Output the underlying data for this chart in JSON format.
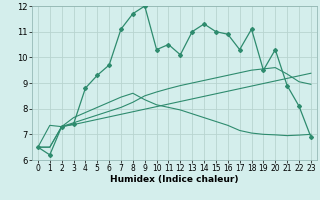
{
  "x": [
    0,
    1,
    2,
    3,
    4,
    5,
    6,
    7,
    8,
    9,
    10,
    11,
    12,
    13,
    14,
    15,
    16,
    17,
    18,
    19,
    20,
    21,
    22,
    23
  ],
  "humidex": [
    6.5,
    6.2,
    7.3,
    7.4,
    8.8,
    9.3,
    9.7,
    11.1,
    11.7,
    12.0,
    10.3,
    10.5,
    10.1,
    11.0,
    11.3,
    11.0,
    10.9,
    10.3,
    11.1,
    9.5,
    10.3,
    8.9,
    8.1,
    6.9
  ],
  "line2": [
    6.5,
    7.35,
    7.3,
    7.65,
    7.85,
    8.05,
    8.25,
    8.45,
    8.6,
    8.35,
    8.15,
    8.05,
    7.95,
    7.8,
    7.65,
    7.5,
    7.35,
    7.15,
    7.05,
    7.0,
    6.98,
    6.95,
    6.97,
    7.0
  ],
  "line3": [
    6.5,
    6.5,
    7.3,
    7.45,
    7.6,
    7.75,
    7.9,
    8.05,
    8.25,
    8.5,
    8.65,
    8.78,
    8.9,
    9.0,
    9.1,
    9.2,
    9.3,
    9.4,
    9.5,
    9.55,
    9.6,
    9.35,
    9.05,
    8.95
  ],
  "line4": [
    6.5,
    6.5,
    7.3,
    7.38,
    7.48,
    7.58,
    7.68,
    7.78,
    7.88,
    7.98,
    8.08,
    8.18,
    8.28,
    8.38,
    8.48,
    8.58,
    8.68,
    8.78,
    8.88,
    8.98,
    9.08,
    9.18,
    9.28,
    9.38
  ],
  "color": "#2e8b6e",
  "bg_color": "#d4eeec",
  "grid_color": "#b8d4d0",
  "xlabel": "Humidex (Indice chaleur)",
  "ylim": [
    6,
    12
  ],
  "xlim_min": -0.5,
  "xlim_max": 23.5,
  "yticks": [
    6,
    7,
    8,
    9,
    10,
    11,
    12
  ],
  "xticks": [
    0,
    1,
    2,
    3,
    4,
    5,
    6,
    7,
    8,
    9,
    10,
    11,
    12,
    13,
    14,
    15,
    16,
    17,
    18,
    19,
    20,
    21,
    22,
    23
  ],
  "tick_fontsize": 5.5,
  "xlabel_fontsize": 6.5
}
